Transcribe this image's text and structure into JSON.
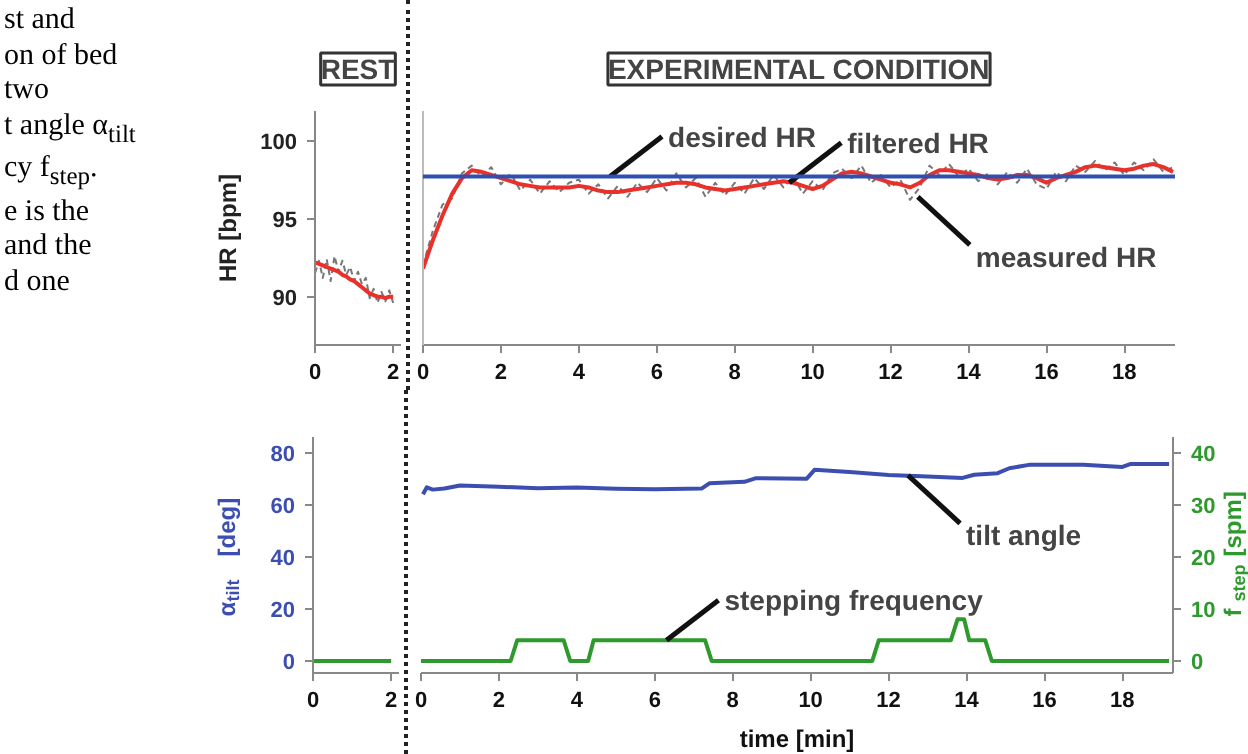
{
  "chart_data": [
    {
      "type": "line",
      "title": "REST",
      "ylabel": "HR [bpm]",
      "xlim": [
        0,
        2.2
      ],
      "xticks": [
        0,
        2
      ],
      "ylim": [
        86.9,
        101.9
      ],
      "yticks": [
        90,
        95,
        100
      ],
      "grid": false,
      "marker": "none",
      "annotations": [
        "st and",
        "on of bed",
        "two",
        "t angle α$_{tilt}$",
        "cy f$_{step}$.",
        "e is the",
        "and the",
        "d one"
      ],
      "x": [
        0,
        0.1,
        0.2,
        0.3,
        0.4,
        0.5,
        0.6,
        0.7,
        0.8,
        0.9,
        1.0,
        1.1,
        1.2,
        1.3,
        1.4,
        1.5,
        1.6,
        1.7,
        1.8,
        1.9,
        2.0
      ],
      "series": [
        {
          "color": "#777777",
          "line_style": "dashed",
          "values": [
            91.5,
            92.3,
            91.2,
            92.4,
            91.0,
            92.6,
            91.6,
            92.3,
            91.4,
            91.9,
            91.0,
            91.6,
            90.8,
            91.2,
            89.9,
            90.5,
            89.6,
            90.3,
            89.7,
            90.4,
            89.6
          ]
        },
        {
          "color": "#e8312a",
          "line_style": "solid",
          "values": [
            92.2,
            92.1,
            92.0,
            91.9,
            91.8,
            91.7,
            91.6,
            91.4,
            91.3,
            91.1,
            91.0,
            90.8,
            90.6,
            90.4,
            90.2,
            90.1,
            90.0,
            90.0,
            89.9,
            90.0,
            90.0
          ]
        }
      ]
    },
    {
      "type": "line",
      "title": "EXPERIMENTAL CONDITION",
      "xlim": [
        0,
        19.3
      ],
      "xticks": [
        0,
        2,
        4,
        6,
        8,
        10,
        12,
        14,
        16,
        18
      ],
      "ylim": [
        86.9,
        101.9
      ],
      "tick_labels": "x",
      "grid": false,
      "marker": "none",
      "ref_lines": [
        {
          "axis": "y",
          "value": 97.7,
          "color": "#3050b0",
          "line_style": "solid"
        }
      ],
      "annotations": [
        {
          "text": "desired HR",
          "x": 4.8,
          "y": 97.7
        },
        {
          "text": "filtered HR",
          "x": 9.4,
          "y": 97.3
        },
        {
          "text": "measured HR",
          "x": 12.7,
          "y": 96.4
        }
      ],
      "x": [
        0,
        0.25,
        0.5,
        0.75,
        1,
        1.25,
        1.5,
        1.75,
        2,
        2.25,
        2.5,
        2.75,
        3,
        3.25,
        3.5,
        3.75,
        4,
        4.25,
        4.5,
        4.75,
        5,
        5.25,
        5.5,
        5.75,
        6,
        6.25,
        6.5,
        6.75,
        7,
        7.25,
        7.5,
        7.75,
        8,
        8.25,
        8.5,
        8.75,
        9,
        9.25,
        9.5,
        9.75,
        10,
        10.25,
        10.5,
        10.75,
        11,
        11.25,
        11.5,
        11.75,
        12,
        12.25,
        12.5,
        12.75,
        13,
        13.25,
        13.5,
        13.75,
        14,
        14.25,
        14.5,
        14.75,
        15,
        15.25,
        15.5,
        15.75,
        16,
        16.25,
        16.5,
        16.75,
        17,
        17.25,
        17.5,
        17.75,
        18,
        18.25,
        18.5,
        18.75,
        19,
        19.25
      ],
      "series": [
        {
          "color": "#777777",
          "line_style": "dashed",
          "values": [
            92.0,
            94.2,
            95.9,
            96.3,
            97.9,
            98.4,
            97.7,
            98.3,
            97.2,
            97.9,
            96.8,
            97.5,
            96.6,
            97.4,
            96.7,
            97.3,
            97.5,
            96.6,
            97.2,
            96.3,
            97.1,
            96.4,
            97.3,
            96.7,
            97.6,
            96.8,
            97.9,
            97.0,
            97.6,
            96.4,
            97.3,
            96.5,
            97.3,
            96.6,
            97.6,
            96.9,
            97.8,
            97.0,
            97.7,
            96.6,
            97.4,
            96.8,
            97.9,
            98.2,
            97.6,
            98.4,
            97.3,
            97.8,
            97.0,
            97.5,
            96.2,
            97.0,
            98.4,
            97.8,
            98.5,
            97.7,
            98.2,
            97.4,
            97.9,
            97.2,
            98.0,
            97.3,
            98.2,
            97.2,
            96.9,
            98.0,
            97.4,
            98.4,
            98.0,
            98.7,
            98.1,
            98.6,
            97.8,
            98.6,
            98.1,
            98.8,
            98.0,
            98.3
          ]
        },
        {
          "color": "#e8312a",
          "line_style": "solid",
          "values": [
            91.8,
            93.6,
            95.2,
            96.6,
            97.6,
            98.1,
            98.0,
            97.8,
            97.6,
            97.4,
            97.2,
            97.1,
            97.0,
            97.0,
            97.0,
            97.0,
            97.1,
            97.0,
            96.8,
            96.7,
            96.7,
            96.8,
            96.9,
            97.0,
            97.1,
            97.2,
            97.3,
            97.3,
            97.2,
            97.0,
            96.9,
            96.8,
            96.9,
            97.0,
            97.1,
            97.2,
            97.3,
            97.4,
            97.3,
            97.1,
            96.9,
            97.1,
            97.5,
            97.9,
            98.0,
            97.9,
            97.7,
            97.5,
            97.3,
            97.2,
            97.0,
            97.3,
            97.8,
            98.1,
            98.1,
            98.0,
            97.9,
            97.8,
            97.6,
            97.5,
            97.6,
            97.8,
            97.8,
            97.6,
            97.3,
            97.6,
            97.8,
            98.0,
            98.3,
            98.4,
            98.3,
            98.2,
            98.1,
            98.2,
            98.4,
            98.5,
            98.3,
            98.0
          ]
        }
      ]
    },
    {
      "type": "line",
      "ylabel": "α$_{tilt}$ [deg]",
      "xlim": [
        0,
        2.2
      ],
      "xticks": [
        0,
        2
      ],
      "ylim": [
        -4.6,
        86
      ],
      "yticks": [
        0,
        20,
        40,
        60,
        80
      ],
      "grid": false,
      "marker": "none",
      "series": [
        {
          "color": "#2e9a2e",
          "x": [
            0,
            2
          ],
          "values": [
            0,
            0
          ]
        }
      ]
    },
    {
      "type": "line",
      "xlabel": "time [min]",
      "y2label": "f$_{step}$ [spm]",
      "xlim": [
        0,
        19.3
      ],
      "xticks": [
        0,
        2,
        4,
        6,
        8,
        10,
        12,
        14,
        16,
        18
      ],
      "ylim": [
        -4.6,
        86
      ],
      "y2lim": [
        -2.3,
        43
      ],
      "y2ticks": [
        0,
        10,
        20,
        30,
        40
      ],
      "grid": false,
      "marker": "none",
      "annotations": [
        {
          "text": "tilt angle",
          "x": 12.5,
          "y": 71.3
        },
        {
          "text": "stepping frequency",
          "x": 6.3,
          "y": 8.0
        }
      ],
      "series": [
        {
          "color": "#3c4fb0",
          "x": [
            0.05,
            0.15,
            0.3,
            0.6,
            1,
            2,
            3,
            4,
            5,
            6,
            7.2,
            7.4,
            8.3,
            8.6,
            9.9,
            10.1,
            11,
            12,
            13,
            13.9,
            14.2,
            14.8,
            15.1,
            15.6,
            17,
            18,
            18.2,
            19.2
          ],
          "values": [
            64,
            66.7,
            65.8,
            66.2,
            67.4,
            66.9,
            66.3,
            66.6,
            66.1,
            65.9,
            66.2,
            68.2,
            68.8,
            70.2,
            70.0,
            73.4,
            72.6,
            71.4,
            70.8,
            70.3,
            71.5,
            72.1,
            74.0,
            75.3,
            75.3,
            74.5,
            75.6,
            75.6
          ]
        },
        {
          "color": "#2e9a2e",
          "axis": "y2",
          "x": [
            0,
            2.3,
            2.47,
            3.66,
            3.83,
            4.29,
            4.43,
            7.29,
            7.46,
            11.58,
            11.75,
            13.6,
            13.77,
            13.94,
            14.07,
            14.48,
            14.65,
            19.2
          ],
          "values": [
            0,
            0,
            4,
            4,
            0,
            0,
            4,
            4,
            0,
            0,
            4,
            4,
            8,
            8,
            4,
            4,
            0,
            0
          ]
        }
      ]
    }
  ]
}
